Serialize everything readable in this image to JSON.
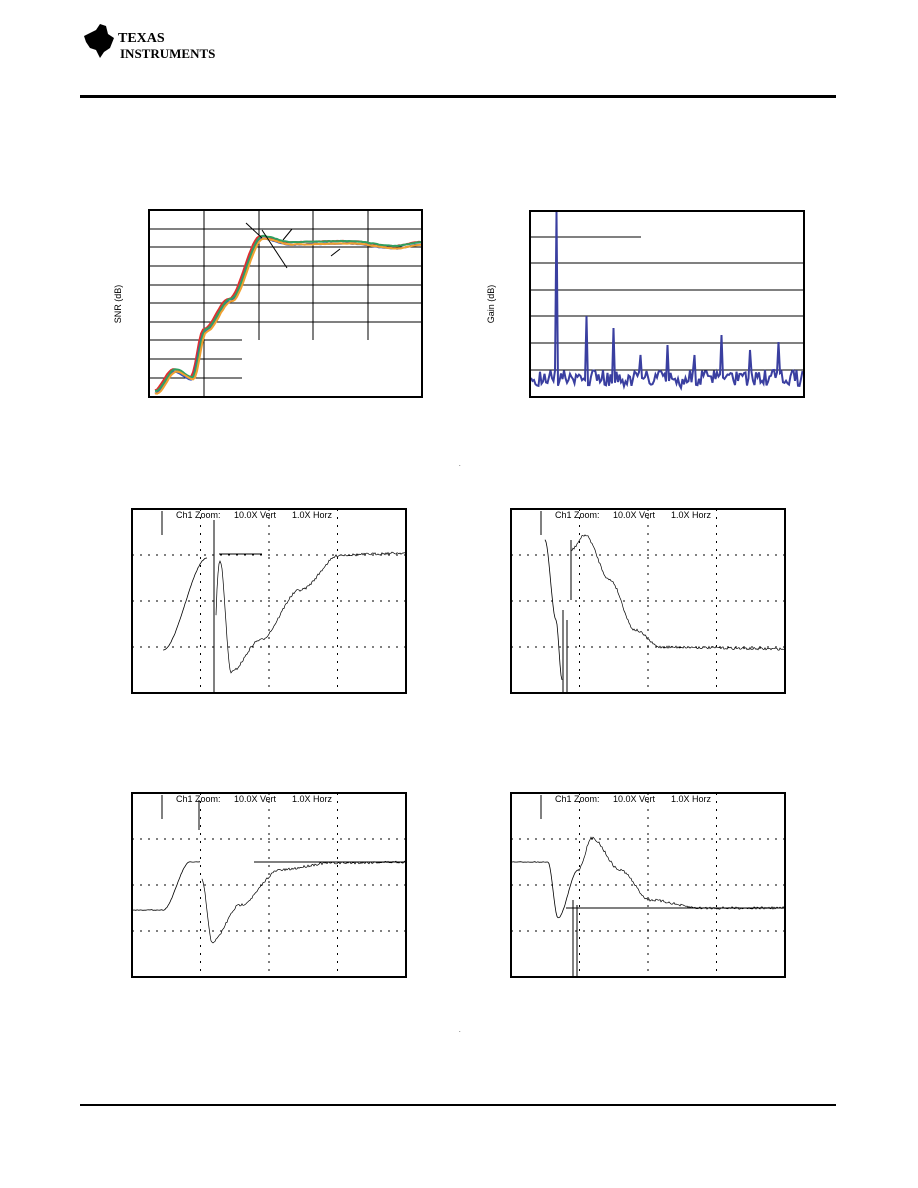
{
  "header": {
    "logo_line1": "Texas",
    "logo_line2": "Instruments"
  },
  "figures": [
    {
      "y_label": "SNR (dB)"
    },
    {
      "y_label": "Gain (dB)"
    }
  ],
  "scopes": [
    {
      "zoom": "Ch1 Zoom:",
      "vert": "10.0X Vert",
      "horz": "1.0X Horz"
    },
    {
      "zoom": "Ch1 Zoom:",
      "vert": "10.0X Vert",
      "horz": "1.0X Horz"
    },
    {
      "zoom": "Ch1 Zoom:",
      "vert": "10.0X Vert",
      "horz": "1.0X Horz"
    },
    {
      "zoom": "Ch1 Zoom:",
      "vert": "10.0X Vert",
      "horz": "1.0X Horz"
    }
  ]
}
